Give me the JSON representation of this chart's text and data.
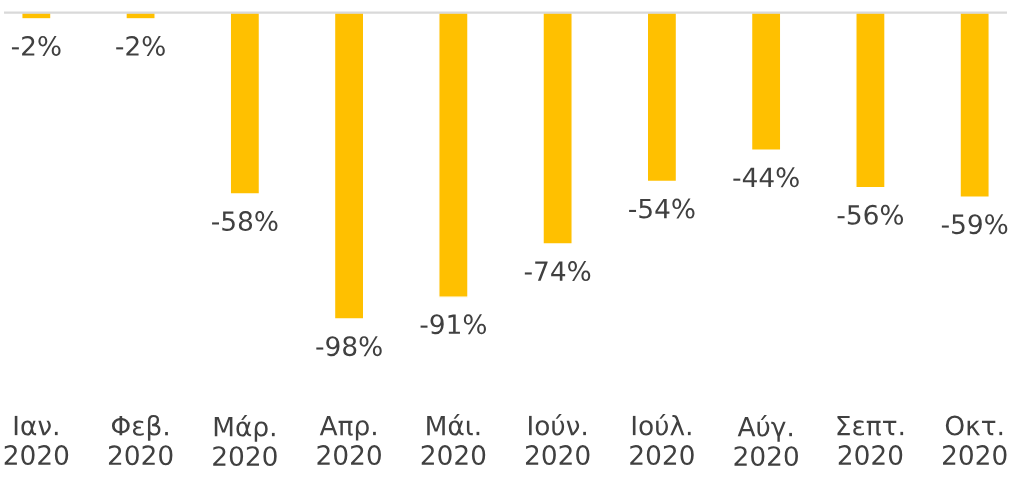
{
  "chart_data": {
    "type": "bar",
    "categories": [
      "Ιαν.\n2020",
      "Φεβ.\n2020",
      "Μάρ.\n2020",
      "Απρ.\n2020",
      "Μάι.\n2020",
      "Ιούν.\n2020",
      "Ιούλ.\n2020",
      "Αύγ.\n2020",
      "Σεπτ.\n2020",
      "Οκτ.\n2020"
    ],
    "values": [
      -2,
      -2,
      -58,
      -98,
      -91,
      -74,
      -54,
      -44,
      -56,
      -59
    ],
    "value_labels": [
      "-2%",
      "-2%",
      "-58%",
      "-98%",
      "-91%",
      "-74%",
      "-54%",
      "-44%",
      "-56%",
      "-59%"
    ],
    "color": "#ffc000"
  }
}
